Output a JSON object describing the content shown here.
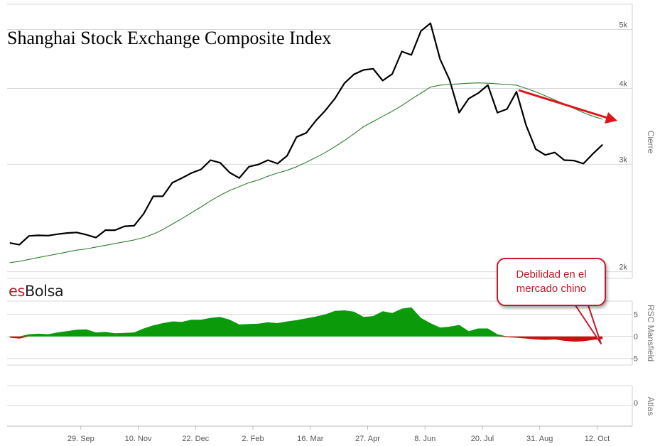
{
  "chart_data": [
    {
      "type": "line",
      "title": "Shanghai Stock Exchange Composite Index",
      "ylabel": "Cierre",
      "y_scale": "log",
      "ylim": [
        1950,
        5500
      ],
      "y_ticks": [
        {
          "v": 2000,
          "label": "2k"
        },
        {
          "v": 3000,
          "label": "3k"
        },
        {
          "v": 4000,
          "label": "4k"
        },
        {
          "v": 5000,
          "label": "5k"
        }
      ],
      "x": [
        "2014-08-08",
        "2014-08-15",
        "2014-08-22",
        "2014-08-29",
        "2014-09-05",
        "2014-09-12",
        "2014-09-19",
        "2014-09-26",
        "2014-10-03",
        "2014-10-10",
        "2014-10-17",
        "2014-10-24",
        "2014-10-31",
        "2014-11-07",
        "2014-11-14",
        "2014-11-21",
        "2014-11-28",
        "2014-12-05",
        "2014-12-12",
        "2014-12-19",
        "2014-12-26",
        "2015-01-02",
        "2015-01-09",
        "2015-01-16",
        "2015-01-23",
        "2015-01-30",
        "2015-02-06",
        "2015-02-13",
        "2015-02-20",
        "2015-02-27",
        "2015-03-06",
        "2015-03-13",
        "2015-03-20",
        "2015-03-27",
        "2015-04-03",
        "2015-04-10",
        "2015-04-17",
        "2015-04-24",
        "2015-05-01",
        "2015-05-08",
        "2015-05-15",
        "2015-05-22",
        "2015-05-29",
        "2015-06-05",
        "2015-06-12",
        "2015-06-19",
        "2015-06-26",
        "2015-07-03",
        "2015-07-10",
        "2015-07-17",
        "2015-07-24",
        "2015-07-31",
        "2015-08-07",
        "2015-08-14",
        "2015-08-21",
        "2015-08-28",
        "2015-09-04",
        "2015-09-11",
        "2015-09-18",
        "2015-09-25",
        "2015-10-02",
        "2015-10-09",
        "2015-10-16"
      ],
      "series": [
        {
          "color": "#000000",
          "values": [
            2230,
            2215,
            2290,
            2295,
            2292,
            2305,
            2315,
            2320,
            2300,
            2275,
            2340,
            2340,
            2375,
            2380,
            2490,
            2660,
            2660,
            2800,
            2850,
            2905,
            2945,
            3050,
            3020,
            2910,
            2850,
            2975,
            3000,
            3050,
            3010,
            3100,
            3330,
            3380,
            3540,
            3680,
            3850,
            4080,
            4220,
            4290,
            4310,
            4120,
            4225,
            4600,
            4540,
            4970,
            5120,
            4470,
            4130,
            3650,
            3850,
            3930,
            4050,
            3650,
            3700,
            3950,
            3480,
            3180,
            3110,
            3140,
            3050,
            3045,
            3010,
            3125,
            3235
          ]
        },
        {
          "color": "#2e7d2e",
          "values": [
            2070,
            2080,
            2095,
            2110,
            2125,
            2140,
            2155,
            2170,
            2180,
            2195,
            2210,
            2225,
            2240,
            2255,
            2275,
            2305,
            2345,
            2395,
            2445,
            2500,
            2555,
            2615,
            2670,
            2720,
            2760,
            2800,
            2830,
            2870,
            2905,
            2935,
            2975,
            3025,
            3080,
            3140,
            3210,
            3285,
            3370,
            3460,
            3530,
            3600,
            3670,
            3750,
            3840,
            3930,
            4020,
            4050,
            4060,
            4070,
            4080,
            4085,
            4080,
            4070,
            4060,
            4050,
            4000,
            3950,
            3890,
            3830,
            3770,
            3710,
            3650,
            3600,
            3560
          ]
        }
      ],
      "x_ticks": [
        "29. Sep",
        "10. Nov",
        "22. Dec",
        "2. Feb",
        "16. Mar",
        "27. Apr",
        "8. Jun",
        "20. Jul",
        "31. Aug",
        "12. Oct"
      ],
      "annotations": [
        "red trend arrow pointing down-right"
      ]
    },
    {
      "type": "area",
      "ylabel": "RSC Mansfield",
      "ylim": [
        -6.5,
        8
      ],
      "y_ticks": [
        5,
        0,
        -5
      ],
      "values": [
        -0.3,
        -0.5,
        0.5,
        0.6,
        0.5,
        0.9,
        1.2,
        1.5,
        1.6,
        0.9,
        1.0,
        0.7,
        0.8,
        0.9,
        1.8,
        2.5,
        3.0,
        3.4,
        3.3,
        3.8,
        3.8,
        4.2,
        4.4,
        3.8,
        2.7,
        2.8,
        2.9,
        3.2,
        3.0,
        3.4,
        3.7,
        4.1,
        4.5,
        5.0,
        5.8,
        5.9,
        5.6,
        4.4,
        4.6,
        5.7,
        5.3,
        6.3,
        6.6,
        4.2,
        3.0,
        2.0,
        2.2,
        2.6,
        1.2,
        1.8,
        1.8,
        0.5,
        -0.2,
        -0.3,
        -0.5,
        -0.7,
        -0.8,
        -0.7,
        -1.0,
        -1.2,
        -1.1,
        -0.8,
        -0.6
      ],
      "positive_color": "#0a9a0a",
      "negative_color": "#cc1010"
    },
    {
      "type": "line",
      "ylabel": "Atlas",
      "y_ticks": [
        0
      ]
    }
  ],
  "brand": {
    "part1": "es",
    "part2": "Bolsa"
  },
  "callout": {
    "text": "Debilidad en el mercado chino"
  }
}
